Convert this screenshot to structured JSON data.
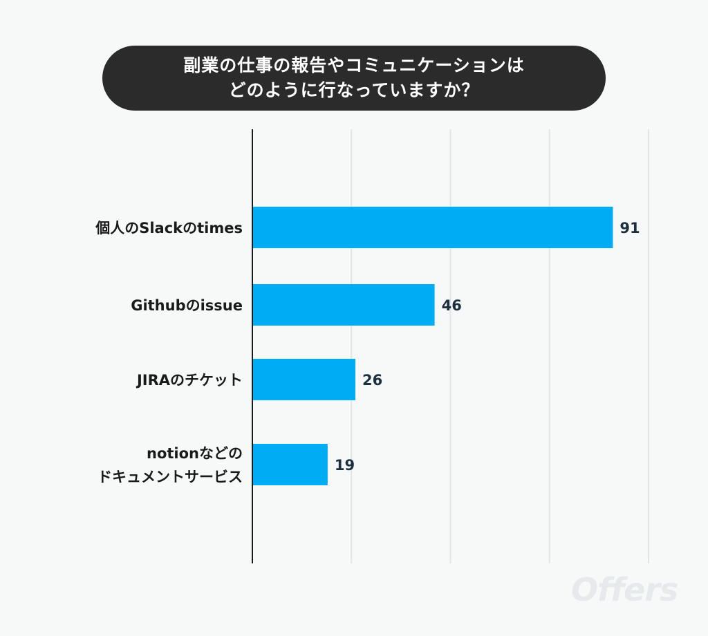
{
  "colors": {
    "bar": "#00adf5",
    "axis": "#1a1a1a",
    "grid": "#e2e5e7",
    "title_bg": "#2b2b2b",
    "value_text": "#1b2f3f"
  },
  "watermark": "Offers",
  "chart_data": {
    "type": "bar",
    "orientation": "horizontal",
    "title_lines": [
      "副業の仕事の報告やコミュニケーションは",
      "どのように行なっていますか？"
    ],
    "categories": [
      [
        "個人のSlackのtimes"
      ],
      [
        "Githubのissue"
      ],
      [
        "JIRAのチケット"
      ],
      [
        "notionなどの",
        "ドキュメントサービス"
      ]
    ],
    "values": [
      91,
      46,
      26,
      19
    ],
    "xlim": [
      0,
      100
    ],
    "grid": true,
    "data_labels": true
  }
}
